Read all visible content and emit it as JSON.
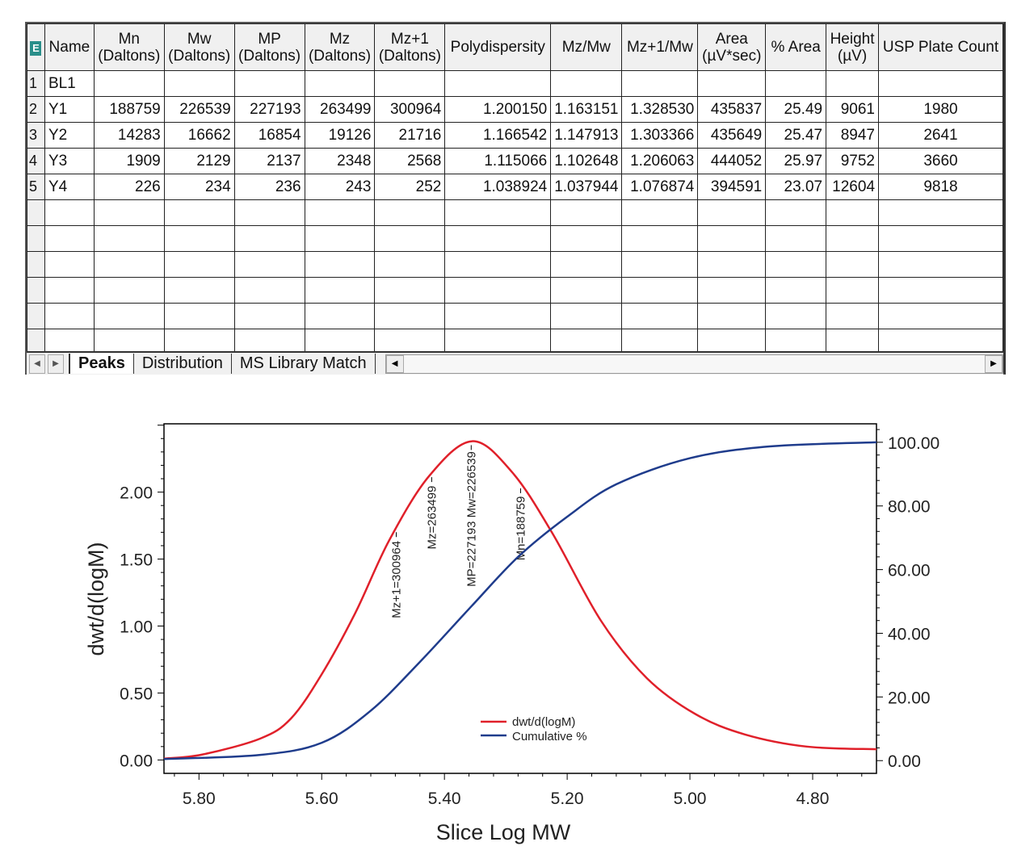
{
  "grid": {
    "corner_icon": "excel-export-icon",
    "columns": [
      "Name",
      "Mn (Daltons)",
      "Mw (Daltons)",
      "MP (Daltons)",
      "Mz (Daltons)",
      "Mz+1 (Daltons)",
      "Polydispersity",
      "Mz/Mw",
      "Mz+1/Mw",
      "Area (µV*sec)",
      "% Area",
      "Height (µV)",
      "USP Plate Count"
    ],
    "column_lines": [
      [
        "Name"
      ],
      [
        "Mn",
        "(Daltons)"
      ],
      [
        "Mw",
        "(Daltons)"
      ],
      [
        "MP",
        "(Daltons)"
      ],
      [
        "Mz",
        "(Daltons)"
      ],
      [
        "Mz+1",
        "(Daltons)"
      ],
      [
        "Polydispersity"
      ],
      [
        "Mz/Mw"
      ],
      [
        "Mz+1/Mw"
      ],
      [
        "Area",
        "(µV*sec)"
      ],
      [
        "% Area"
      ],
      [
        "Height",
        "(µV)"
      ],
      [
        "USP Plate Count"
      ]
    ],
    "rows": [
      {
        "index": "1",
        "cells": [
          "BL1",
          "",
          "",
          "",
          "",
          "",
          "",
          "",
          "",
          "",
          "",
          "",
          ""
        ]
      },
      {
        "index": "2",
        "cells": [
          "Y1",
          "188759",
          "226539",
          "227193",
          "263499",
          "300964",
          "1.200150",
          "1.163151",
          "1.328530",
          "435837",
          "25.49",
          "9061",
          "1980"
        ]
      },
      {
        "index": "3",
        "cells": [
          "Y2",
          "14283",
          "16662",
          "16854",
          "19126",
          "21716",
          "1.166542",
          "1.147913",
          "1.303366",
          "435649",
          "25.47",
          "8947",
          "2641"
        ]
      },
      {
        "index": "4",
        "cells": [
          "Y3",
          "1909",
          "2129",
          "2137",
          "2348",
          "2568",
          "1.115066",
          "1.102648",
          "1.206063",
          "444052",
          "25.97",
          "9752",
          "3660"
        ]
      },
      {
        "index": "5",
        "cells": [
          "Y4",
          "226",
          "234",
          "236",
          "243",
          "252",
          "1.038924",
          "1.037944",
          "1.076874",
          "394591",
          "23.07",
          "12604",
          "9818"
        ]
      }
    ],
    "empty_rows": 6,
    "tabs": [
      {
        "label": "Peaks",
        "active": true
      },
      {
        "label": "Distribution",
        "active": false
      },
      {
        "label": "MS Library Match",
        "active": false
      }
    ]
  },
  "chart_data": {
    "type": "line",
    "xlabel": "Slice Log MW",
    "ylabel": "dwt/d(logM)",
    "y2label": "",
    "xlim": [
      5.857,
      4.696
    ],
    "x_reversed": true,
    "ylim": [
      -0.1,
      2.51
    ],
    "y2lim": [
      -4,
      105.8
    ],
    "xticks": [
      "5.80",
      "5.60",
      "5.40",
      "5.20",
      "5.00",
      "4.80"
    ],
    "yticks": [
      "0.00",
      "0.50",
      "1.00",
      "1.50",
      "2.00"
    ],
    "y2ticks": [
      "0.00",
      "20.00",
      "40.00",
      "60.00",
      "80.00",
      "100.00"
    ],
    "grid": false,
    "legend_position": "bottom-center",
    "series": [
      {
        "name": "dwt/d(logM)",
        "axis": "left",
        "color": "#e0202a",
        "x": [
          5.857,
          5.795,
          5.7,
          5.65,
          5.6,
          5.545,
          5.49,
          5.425,
          5.355,
          5.29,
          5.225,
          5.145,
          5.07,
          4.99,
          4.91,
          4.81,
          4.696
        ],
        "y": [
          0.01,
          0.04,
          0.16,
          0.31,
          0.64,
          1.1,
          1.64,
          2.12,
          2.38,
          2.15,
          1.7,
          1.04,
          0.61,
          0.34,
          0.19,
          0.1,
          0.08
        ]
      },
      {
        "name": "Cumulative %",
        "axis": "right",
        "color": "#1f3c8c",
        "x": [
          5.857,
          5.7,
          5.6,
          5.52,
          5.44,
          5.355,
          5.28,
          5.2,
          5.12,
          5.0,
          4.87,
          4.696
        ],
        "y": [
          0.5,
          1.8,
          5.6,
          15.7,
          31,
          48.7,
          64,
          76.6,
          86.8,
          95,
          98.7,
          100
        ]
      }
    ],
    "annotations": [
      {
        "label": "Mz+1=300964",
        "value": 300964
      },
      {
        "label": "Mz=263499",
        "value": 263499
      },
      {
        "label": "MP=227193 Mw=226539",
        "value": 227193
      },
      {
        "label": "Mn=188759",
        "value": 188759
      }
    ]
  }
}
